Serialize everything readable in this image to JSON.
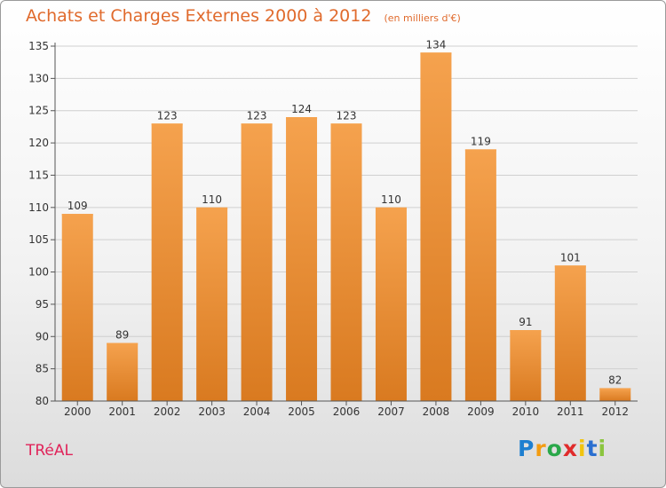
{
  "header": {
    "title": "Achats et Charges Externes 2000 à 2012",
    "subtitle": "(en milliers d'€)"
  },
  "footer": {
    "location": "TRéAL",
    "brand_letters": [
      "P",
      "r",
      "o",
      "x",
      "i",
      "t",
      "i"
    ],
    "brand_colors": [
      "#1e7fd0",
      "#f39c12",
      "#2aa84a",
      "#e02b2b",
      "#f1c40f",
      "#2a6fd0",
      "#8bc53f"
    ]
  },
  "colors": {
    "bar_top": "#f5a24e",
    "bar_bottom": "#d97a20",
    "axis": "#555555",
    "grid": "#d0d0d0"
  },
  "chart_data": {
    "type": "bar",
    "categories": [
      "2000",
      "2001",
      "2002",
      "2003",
      "2004",
      "2005",
      "2006",
      "2007",
      "2008",
      "2009",
      "2010",
      "2011",
      "2012"
    ],
    "values": [
      109,
      89,
      123,
      110,
      123,
      124,
      123,
      110,
      134,
      119,
      91,
      101,
      82
    ],
    "ylim": [
      80,
      135
    ],
    "yticks": [
      80,
      85,
      90,
      95,
      100,
      105,
      110,
      115,
      120,
      125,
      130,
      135
    ],
    "grid": true
  }
}
